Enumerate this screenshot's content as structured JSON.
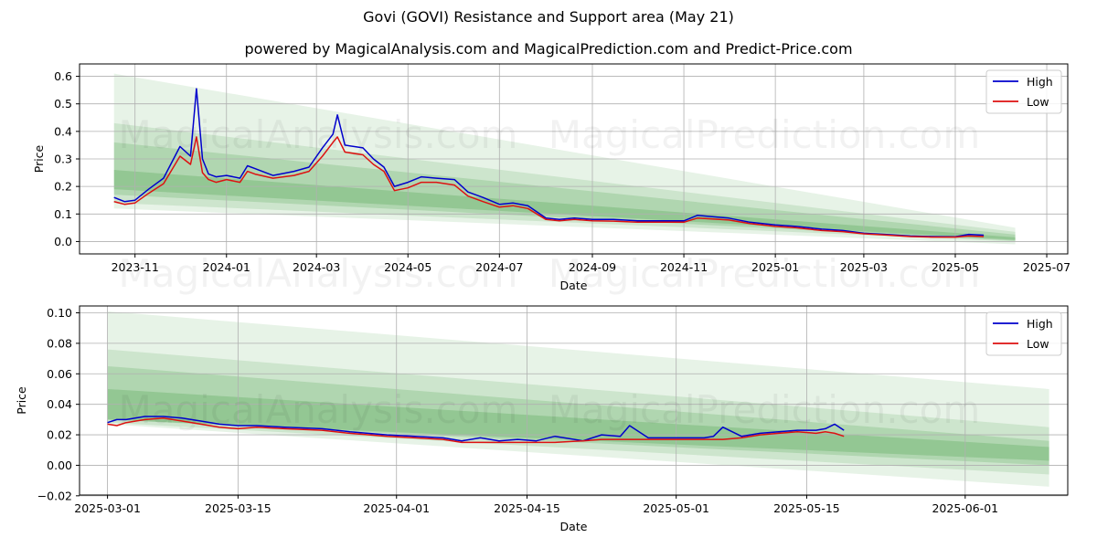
{
  "title": "Govi (GOVI) Resistance and Support area (May 21)",
  "subtitle": "powered by MagicalAnalysis.com and MagicalPrediction.com and Predict-Price.com",
  "watermark": "MagicalAnalysis.com MagicalPrediction.com",
  "colors": {
    "high": "#0000cc",
    "low": "#dd1111",
    "band": "#3d9a3d",
    "grid": "#b0b0b0"
  },
  "chart_data": [
    {
      "type": "line",
      "xlabel": "Date",
      "ylabel": "Price",
      "xlim": [
        "2023-09-25",
        "2025-07-15"
      ],
      "ylim": [
        -0.045,
        0.645
      ],
      "x_ticks": [
        "2023-11",
        "2024-01",
        "2024-03",
        "2024-05",
        "2024-07",
        "2024-09",
        "2024-11",
        "2025-01",
        "2025-03",
        "2025-05",
        "2025-07"
      ],
      "x_tick_dates": [
        "2023-11-01",
        "2024-01-01",
        "2024-03-01",
        "2024-05-01",
        "2024-07-01",
        "2024-09-01",
        "2024-11-01",
        "2025-01-01",
        "2025-03-01",
        "2025-05-01",
        "2025-07-01"
      ],
      "y_ticks": [
        "0.0",
        "0.1",
        "0.2",
        "0.3",
        "0.4",
        "0.5",
        "0.6"
      ],
      "y_tick_values": [
        0.0,
        0.1,
        0.2,
        0.3,
        0.4,
        0.5,
        0.6
      ],
      "grid": true,
      "legend": "top-right",
      "legend_entries": [
        "High",
        "Low"
      ],
      "x": [
        "2023-10-18",
        "2023-10-25",
        "2023-11-01",
        "2023-11-10",
        "2023-11-20",
        "2023-12-01",
        "2023-12-08",
        "2023-12-12",
        "2023-12-16",
        "2023-12-20",
        "2023-12-25",
        "2024-01-01",
        "2024-01-10",
        "2024-01-15",
        "2024-01-20",
        "2024-02-01",
        "2024-02-15",
        "2024-02-25",
        "2024-03-05",
        "2024-03-12",
        "2024-03-15",
        "2024-03-20",
        "2024-04-01",
        "2024-04-08",
        "2024-04-15",
        "2024-04-22",
        "2024-05-01",
        "2024-05-10",
        "2024-05-20",
        "2024-06-01",
        "2024-06-10",
        "2024-06-20",
        "2024-07-01",
        "2024-07-10",
        "2024-07-20",
        "2024-08-01",
        "2024-08-10",
        "2024-08-20",
        "2024-09-01",
        "2024-09-15",
        "2024-10-01",
        "2024-10-15",
        "2024-11-01",
        "2024-11-10",
        "2024-11-20",
        "2024-12-01",
        "2024-12-15",
        "2025-01-01",
        "2025-01-15",
        "2025-02-01",
        "2025-02-15",
        "2025-03-01",
        "2025-03-15",
        "2025-04-01",
        "2025-04-15",
        "2025-05-01",
        "2025-05-10",
        "2025-05-20"
      ],
      "series": [
        {
          "name": "High",
          "values": [
            0.16,
            0.145,
            0.15,
            0.19,
            0.23,
            0.345,
            0.31,
            0.555,
            0.3,
            0.245,
            0.235,
            0.24,
            0.23,
            0.275,
            0.265,
            0.24,
            0.255,
            0.27,
            0.34,
            0.39,
            0.46,
            0.35,
            0.34,
            0.3,
            0.27,
            0.2,
            0.215,
            0.235,
            0.23,
            0.225,
            0.18,
            0.16,
            0.135,
            0.14,
            0.13,
            0.085,
            0.08,
            0.085,
            0.08,
            0.08,
            0.075,
            0.075,
            0.075,
            0.095,
            0.09,
            0.085,
            0.07,
            0.06,
            0.055,
            0.045,
            0.04,
            0.03,
            0.026,
            0.02,
            0.018,
            0.017,
            0.026,
            0.023
          ]
        },
        {
          "name": "Low",
          "values": [
            0.145,
            0.135,
            0.14,
            0.175,
            0.21,
            0.31,
            0.28,
            0.38,
            0.25,
            0.225,
            0.215,
            0.225,
            0.215,
            0.255,
            0.245,
            0.23,
            0.24,
            0.255,
            0.31,
            0.36,
            0.38,
            0.325,
            0.315,
            0.28,
            0.255,
            0.185,
            0.195,
            0.215,
            0.215,
            0.205,
            0.165,
            0.145,
            0.125,
            0.13,
            0.12,
            0.08,
            0.075,
            0.08,
            0.075,
            0.074,
            0.07,
            0.07,
            0.07,
            0.085,
            0.082,
            0.078,
            0.065,
            0.055,
            0.05,
            0.04,
            0.036,
            0.028,
            0.024,
            0.018,
            0.016,
            0.016,
            0.02,
            0.018
          ]
        }
      ],
      "support_bands": [
        {
          "start": "2023-10-18",
          "end": "2025-06-10",
          "upper_start": 0.61,
          "upper_end": 0.05,
          "lower_start": 0.12,
          "lower_end": -0.01,
          "opacity": 0.12
        },
        {
          "start": "2023-10-18",
          "end": "2025-06-10",
          "upper_start": 0.43,
          "upper_end": 0.035,
          "lower_start": 0.14,
          "lower_end": 0.0,
          "opacity": 0.15
        },
        {
          "start": "2023-10-18",
          "end": "2025-06-10",
          "upper_start": 0.36,
          "upper_end": 0.025,
          "lower_start": 0.17,
          "lower_end": 0.003,
          "opacity": 0.2
        },
        {
          "start": "2023-10-18",
          "end": "2025-06-10",
          "upper_start": 0.26,
          "upper_end": 0.015,
          "lower_start": 0.19,
          "lower_end": 0.006,
          "opacity": 0.25
        }
      ]
    },
    {
      "type": "line",
      "xlabel": "Date",
      "ylabel": "Price",
      "xlim": [
        "2025-02-26",
        "2025-06-12"
      ],
      "ylim": [
        -0.0195,
        0.1045
      ],
      "x_ticks": [
        "2025-03-01",
        "2025-03-15",
        "2025-04-01",
        "2025-04-15",
        "2025-05-01",
        "2025-05-15",
        "2025-06-01"
      ],
      "x_tick_dates": [
        "2025-03-01",
        "2025-03-15",
        "2025-04-01",
        "2025-04-15",
        "2025-05-01",
        "2025-05-15",
        "2025-06-01"
      ],
      "y_ticks": [
        "−0.02",
        "0.00",
        "0.02",
        "0.04",
        "0.06",
        "0.08",
        "0.10"
      ],
      "y_tick_values": [
        -0.02,
        0.0,
        0.02,
        0.04,
        0.06,
        0.08,
        0.1
      ],
      "grid": true,
      "legend": "top-right",
      "legend_entries": [
        "High",
        "Low"
      ],
      "x": [
        "2025-03-01",
        "2025-03-02",
        "2025-03-03",
        "2025-03-05",
        "2025-03-07",
        "2025-03-09",
        "2025-03-11",
        "2025-03-13",
        "2025-03-15",
        "2025-03-17",
        "2025-03-20",
        "2025-03-24",
        "2025-03-27",
        "2025-03-31",
        "2025-04-03",
        "2025-04-06",
        "2025-04-08",
        "2025-04-10",
        "2025-04-12",
        "2025-04-14",
        "2025-04-16",
        "2025-04-18",
        "2025-04-21",
        "2025-04-23",
        "2025-04-25",
        "2025-04-26",
        "2025-04-28",
        "2025-04-30",
        "2025-05-02",
        "2025-05-04",
        "2025-05-05",
        "2025-05-06",
        "2025-05-08",
        "2025-05-10",
        "2025-05-12",
        "2025-05-14",
        "2025-05-16",
        "2025-05-17",
        "2025-05-18",
        "2025-05-19"
      ],
      "series": [
        {
          "name": "High",
          "values": [
            0.028,
            0.03,
            0.03,
            0.032,
            0.032,
            0.031,
            0.029,
            0.027,
            0.026,
            0.026,
            0.025,
            0.024,
            0.022,
            0.02,
            0.019,
            0.018,
            0.016,
            0.018,
            0.016,
            0.017,
            0.016,
            0.019,
            0.016,
            0.02,
            0.019,
            0.026,
            0.018,
            0.018,
            0.018,
            0.018,
            0.019,
            0.025,
            0.019,
            0.021,
            0.022,
            0.023,
            0.023,
            0.024,
            0.027,
            0.023
          ]
        },
        {
          "name": "Low",
          "values": [
            0.027,
            0.026,
            0.028,
            0.03,
            0.031,
            0.029,
            0.027,
            0.025,
            0.024,
            0.025,
            0.024,
            0.023,
            0.021,
            0.019,
            0.018,
            0.017,
            0.015,
            0.015,
            0.015,
            0.015,
            0.015,
            0.015,
            0.016,
            0.017,
            0.017,
            0.017,
            0.017,
            0.017,
            0.017,
            0.017,
            0.017,
            0.017,
            0.018,
            0.02,
            0.021,
            0.022,
            0.021,
            0.022,
            0.021,
            0.019
          ]
        }
      ],
      "support_bands": [
        {
          "start": "2025-03-01",
          "end": "2025-06-10",
          "upper_start": 0.101,
          "upper_end": 0.05,
          "lower_start": 0.027,
          "lower_end": -0.014,
          "opacity": 0.12
        },
        {
          "start": "2025-03-01",
          "end": "2025-06-10",
          "upper_start": 0.076,
          "upper_end": 0.025,
          "lower_start": 0.028,
          "lower_end": -0.006,
          "opacity": 0.15
        },
        {
          "start": "2025-03-01",
          "end": "2025-06-10",
          "upper_start": 0.065,
          "upper_end": 0.016,
          "lower_start": 0.03,
          "lower_end": 0.0,
          "opacity": 0.2
        },
        {
          "start": "2025-03-01",
          "end": "2025-06-10",
          "upper_start": 0.05,
          "upper_end": 0.012,
          "lower_start": 0.03,
          "lower_end": 0.003,
          "opacity": 0.25
        }
      ]
    }
  ]
}
